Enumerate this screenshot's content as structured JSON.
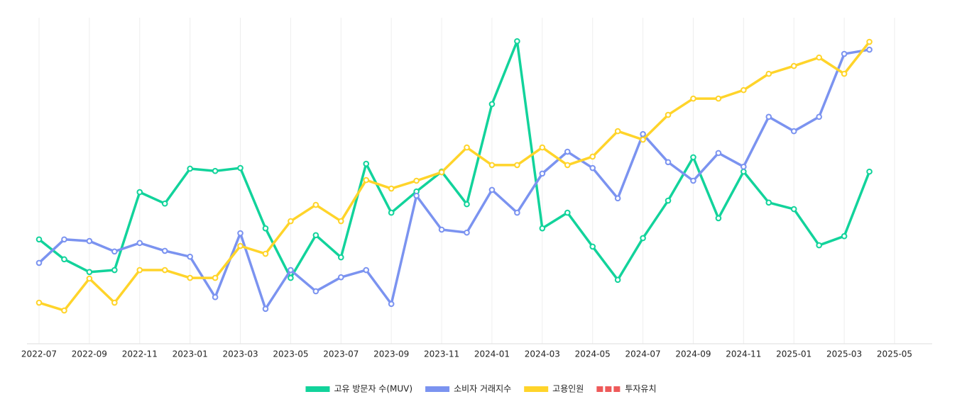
{
  "chart_data": {
    "type": "line",
    "x": [
      "2022-07",
      "2022-08",
      "2022-09",
      "2022-10",
      "2022-11",
      "2022-12",
      "2023-01",
      "2023-02",
      "2023-03",
      "2023-04",
      "2023-05",
      "2023-06",
      "2023-07",
      "2023-08",
      "2023-09",
      "2023-10",
      "2023-11",
      "2023-12",
      "2024-01",
      "2024-02",
      "2024-03",
      "2024-04",
      "2024-05",
      "2024-06",
      "2024-07",
      "2024-08",
      "2024-09",
      "2024-10",
      "2024-11",
      "2024-12",
      "2025-01",
      "2025-02",
      "2025-03",
      "2025-04"
    ],
    "xticks": [
      "2022-07",
      "2022-09",
      "2022-11",
      "2023-01",
      "2023-03",
      "2023-05",
      "2023-07",
      "2023-09",
      "2023-11",
      "2024-01",
      "2024-03",
      "2024-05",
      "2024-07",
      "2024-09",
      "2024-11",
      "2025-01",
      "2025-03",
      "2025-05"
    ],
    "ylim": [
      0,
      100
    ],
    "grid": true,
    "legend": "bottom",
    "series": [
      {
        "name": "고유 방문자 수(MUV)",
        "color": "#12d39b",
        "values": [
          32.0,
          25.9,
          22.0,
          22.6,
          46.5,
          43.0,
          53.7,
          53.0,
          53.9,
          35.4,
          20.2,
          33.3,
          26.5,
          55.2,
          40.2,
          46.7,
          52.8,
          42.8,
          73.5,
          92.8,
          35.4,
          40.2,
          29.8,
          19.6,
          32.4,
          43.9,
          57.2,
          38.5,
          52.8,
          43.3,
          41.3,
          30.2,
          33.0,
          52.8
        ]
      },
      {
        "name": "소비자 거래지수",
        "color": "#7b93f0",
        "values": [
          24.8,
          32.0,
          31.5,
          28.3,
          30.9,
          28.5,
          26.7,
          14.3,
          33.9,
          10.7,
          22.6,
          16.1,
          20.4,
          22.6,
          12.2,
          45.4,
          35.0,
          34.1,
          47.2,
          40.2,
          52.2,
          58.9,
          53.9,
          44.6,
          64.3,
          55.7,
          50.0,
          58.5,
          54.3,
          69.6,
          65.2,
          69.6,
          88.9,
          90.2
        ]
      },
      {
        "name": "고용인원",
        "color": "#ffd42a",
        "values": [
          12.6,
          10.2,
          20.0,
          12.6,
          22.6,
          22.6,
          20.2,
          20.2,
          30.0,
          27.6,
          37.6,
          42.6,
          37.6,
          50.2,
          47.6,
          50.0,
          52.6,
          60.2,
          54.8,
          54.8,
          60.2,
          54.8,
          57.4,
          65.2,
          62.6,
          70.2,
          75.2,
          75.2,
          77.8,
          82.8,
          85.2,
          87.8,
          82.8,
          92.6
        ]
      },
      {
        "name": "투자유치",
        "color": "#ee5a5a",
        "dashed": true,
        "values": [
          null,
          null,
          null,
          null,
          null,
          null,
          null,
          null,
          null,
          null,
          null,
          null,
          null,
          null,
          null,
          null,
          null,
          null,
          null,
          null,
          null,
          null,
          null,
          null,
          null,
          null,
          null,
          null,
          null,
          null,
          null,
          null,
          null,
          null
        ]
      }
    ]
  }
}
